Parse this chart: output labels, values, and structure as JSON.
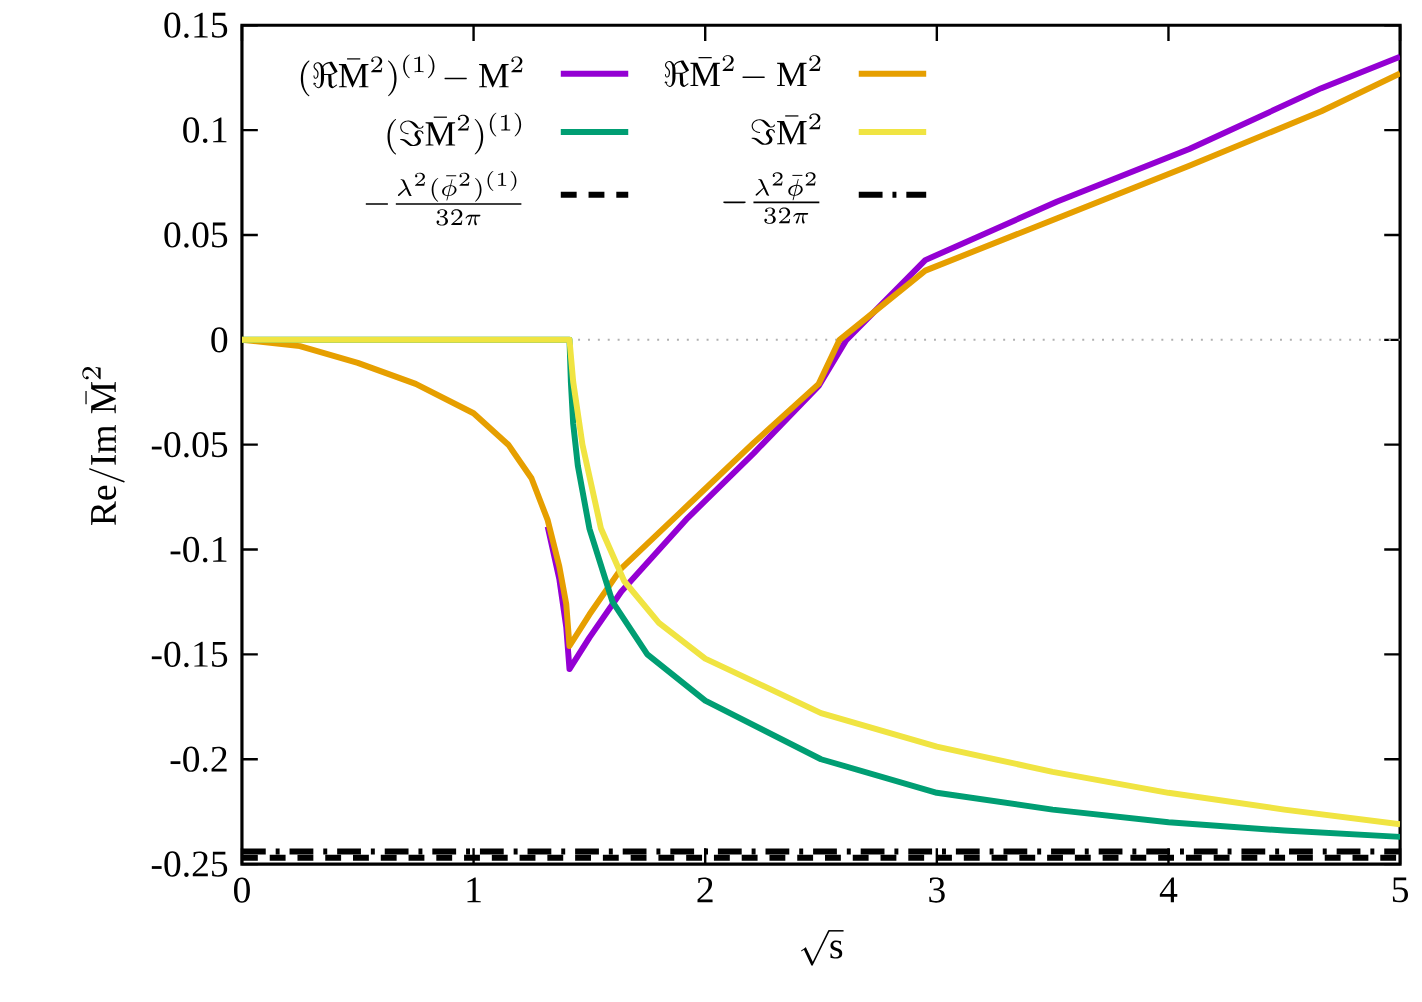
{
  "chart_data": {
    "type": "line",
    "xlabel": "\\sqrt{\\mathrm{s}}",
    "ylabel": "\\mathrm{Re/Im}\\;\\bar{\\mathrm{M}}^2",
    "xlim": [
      0,
      5
    ],
    "ylim": [
      -0.25,
      0.15
    ],
    "xticks": [
      0,
      1,
      2,
      3,
      4,
      5
    ],
    "yticks": [
      -0.25,
      -0.2,
      -0.15,
      -0.1,
      -0.05,
      0,
      0.05,
      0.1,
      0.15
    ],
    "legend": "top left",
    "marker": "none",
    "grid": false,
    "ref_lines": [
      {
        "axis": "y",
        "value": 0,
        "color": "#b0b0b0",
        "line_style": "dotted"
      }
    ],
    "series": [
      {
        "name": "(\\Re\\bar{\\mathrm{M}}^2)^{(1)}\\!-\\mathrm{M}^2",
        "color": "#9400d3",
        "line_style": "solid",
        "x": [
          1.32,
          1.37,
          1.4,
          1.414,
          1.5,
          1.638,
          1.924,
          2.21,
          2.49,
          2.61,
          2.95,
          3.52,
          4.09,
          4.66,
          5
        ],
        "values": [
          -0.089,
          -0.114,
          -0.137,
          -0.157,
          -0.142,
          -0.12,
          -0.085,
          -0.054,
          -0.022,
          0,
          0.038,
          0.066,
          0.091,
          0.12,
          0.135
        ]
      },
      {
        "name": "\\Re\\bar{\\mathrm{M}}^2\\!-\\mathrm{M}^2",
        "color": "#e69f00",
        "line_style": "solid",
        "x": [
          0,
          0.25,
          0.5,
          0.75,
          1.0,
          1.15,
          1.25,
          1.32,
          1.37,
          1.4,
          1.414,
          1.5,
          1.638,
          1.924,
          2.21,
          2.49,
          2.58,
          2.95,
          3.52,
          4.09,
          4.66,
          5
        ],
        "values": [
          0,
          -0.003,
          -0.011,
          -0.021,
          -0.035,
          -0.05,
          -0.066,
          -0.086,
          -0.108,
          -0.126,
          -0.146,
          -0.131,
          -0.109,
          -0.079,
          -0.049,
          -0.021,
          0,
          0.033,
          0.058,
          0.083,
          0.109,
          0.127
        ]
      },
      {
        "name": "(\\Im\\bar{\\mathrm{M}}^2)^{(1)}",
        "color": "#009e73",
        "line_style": "solid",
        "x": [
          0,
          1.414,
          1.42,
          1.43,
          1.45,
          1.5,
          1.6,
          1.75,
          2.0,
          2.5,
          3.0,
          3.5,
          4.0,
          4.5,
          5.0
        ],
        "values": [
          0,
          0,
          -0.02,
          -0.04,
          -0.06,
          -0.09,
          -0.125,
          -0.15,
          -0.172,
          -0.2,
          -0.216,
          -0.224,
          -0.23,
          -0.234,
          -0.237
        ]
      },
      {
        "name": "\\Im\\bar{\\mathrm{M}}^2",
        "color": "#f0e442",
        "line_style": "solid",
        "x": [
          0,
          1.414,
          1.43,
          1.47,
          1.55,
          1.65,
          1.8,
          2.0,
          2.5,
          3.0,
          3.5,
          4.0,
          4.5,
          5.0
        ],
        "values": [
          0,
          0,
          -0.02,
          -0.05,
          -0.09,
          -0.115,
          -0.135,
          -0.152,
          -0.178,
          -0.194,
          -0.206,
          -0.216,
          -0.224,
          -0.231
        ]
      },
      {
        "name": "-\\frac{\\lambda^2(\\bar{\\phi}^2)^{(1)}}{32\\pi}",
        "color": "#000000",
        "line_style": "dashed",
        "x": [
          0,
          5
        ],
        "values": [
          -0.247,
          -0.247
        ]
      },
      {
        "name": "-\\frac{\\lambda^2\\bar{\\phi}^2}{32\\pi}",
        "color": "#000000",
        "line_style": "dashdot",
        "x": [
          0,
          5
        ],
        "values": [
          -0.244,
          -0.244
        ]
      }
    ]
  }
}
